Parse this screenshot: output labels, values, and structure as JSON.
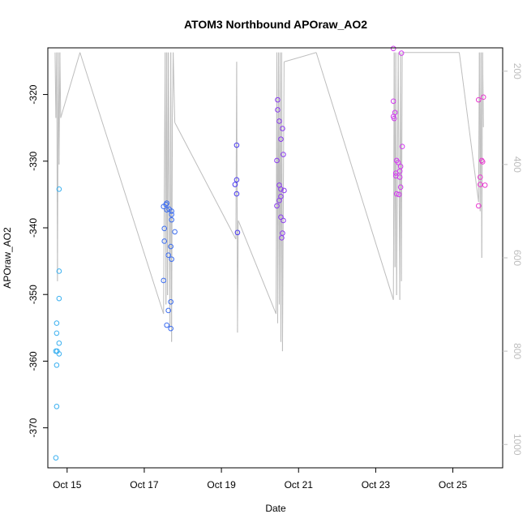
{
  "chart_data": {
    "type": "scatter",
    "title": "ATOM3 Northbound APOraw_AO2",
    "xlabel": "Date",
    "ylabel": "APOraw_AO2",
    "xlim": [
      "2021-10-14T12:00",
      "2021-10-26T07:00"
    ],
    "ylim": [
      -376,
      -313
    ],
    "x_ticks": [
      {
        "x": "2021-10-15T00:00",
        "label": "Oct 15"
      },
      {
        "x": "2021-10-17T00:00",
        "label": "Oct 17"
      },
      {
        "x": "2021-10-19T00:00",
        "label": "Oct 19"
      },
      {
        "x": "2021-10-21T00:00",
        "label": "Oct 21"
      },
      {
        "x": "2021-10-23T00:00",
        "label": "Oct 23"
      },
      {
        "x": "2021-10-25T00:00",
        "label": "Oct 25"
      }
    ],
    "y_ticks": [
      -370,
      -360,
      -350,
      -340,
      -330,
      -320
    ],
    "y2_lim": [
      1050,
      150
    ],
    "y2_ticks": [
      200,
      400,
      600,
      800,
      1000
    ],
    "axis_color": "#bdbdbd",
    "points": [
      {
        "x": "2021-10-14T17:00",
        "y": -374.5,
        "color": "#3ab0f0"
      },
      {
        "x": "2021-10-14T17:30",
        "y": -366.8,
        "color": "#3ab0f0"
      },
      {
        "x": "2021-10-14T17:30",
        "y": -360.6,
        "color": "#3ab0f0"
      },
      {
        "x": "2021-10-14T17:00",
        "y": -358.5,
        "color": "#3ab0f0"
      },
      {
        "x": "2021-10-14T17:45",
        "y": -358.5,
        "color": "#3ab0f0"
      },
      {
        "x": "2021-10-14T19:00",
        "y": -358.9,
        "color": "#3ab0f0"
      },
      {
        "x": "2021-10-14T19:00",
        "y": -357.3,
        "color": "#3ab0f0"
      },
      {
        "x": "2021-10-14T17:30",
        "y": -355.8,
        "color": "#3ab0f0"
      },
      {
        "x": "2021-10-14T17:30",
        "y": -354.3,
        "color": "#3ab0f0"
      },
      {
        "x": "2021-10-14T19:00",
        "y": -350.6,
        "color": "#3ab0f0"
      },
      {
        "x": "2021-10-14T19:00",
        "y": -346.5,
        "color": "#3ab0f0"
      },
      {
        "x": "2021-10-14T19:00",
        "y": -334.2,
        "color": "#3ab0f0"
      },
      {
        "x": "2021-10-17T12:00",
        "y": -336.8,
        "color": "#3a6cf0"
      },
      {
        "x": "2021-10-17T13:30",
        "y": -336.5,
        "color": "#3a6cf0"
      },
      {
        "x": "2021-10-17T14:00",
        "y": -336.3,
        "color": "#3a6cf0"
      },
      {
        "x": "2021-10-17T15:30",
        "y": -337.2,
        "color": "#3a6cf0"
      },
      {
        "x": "2021-10-17T17:00",
        "y": -337.5,
        "color": "#3a6cf0"
      },
      {
        "x": "2021-10-17T14:00",
        "y": -337.3,
        "color": "#3a6cf0"
      },
      {
        "x": "2021-10-17T17:00",
        "y": -338.0,
        "color": "#3a6cf0"
      },
      {
        "x": "2021-10-17T17:00",
        "y": -338.8,
        "color": "#3a6cf0"
      },
      {
        "x": "2021-10-17T12:30",
        "y": -340.1,
        "color": "#3a6cf0"
      },
      {
        "x": "2021-10-17T19:00",
        "y": -340.6,
        "color": "#3a6cf0"
      },
      {
        "x": "2021-10-17T12:30",
        "y": -342.0,
        "color": "#3a6cf0"
      },
      {
        "x": "2021-10-17T16:30",
        "y": -342.8,
        "color": "#3a6cf0"
      },
      {
        "x": "2021-10-17T15:00",
        "y": -344.1,
        "color": "#3a6cf0"
      },
      {
        "x": "2021-10-17T17:00",
        "y": -344.7,
        "color": "#3a6cf0"
      },
      {
        "x": "2021-10-17T12:00",
        "y": -347.9,
        "color": "#3a6cf0"
      },
      {
        "x": "2021-10-17T16:30",
        "y": -351.1,
        "color": "#3a6cf0"
      },
      {
        "x": "2021-10-17T15:00",
        "y": -352.4,
        "color": "#3a6cf0"
      },
      {
        "x": "2021-10-17T14:00",
        "y": -354.6,
        "color": "#3a6cf0"
      },
      {
        "x": "2021-10-17T16:30",
        "y": -355.1,
        "color": "#3a6cf0"
      },
      {
        "x": "2021-10-19T09:30",
        "y": -327.6,
        "color": "#4a3af0"
      },
      {
        "x": "2021-10-19T09:30",
        "y": -332.8,
        "color": "#4a3af0"
      },
      {
        "x": "2021-10-19T08:30",
        "y": -333.5,
        "color": "#4a3af0"
      },
      {
        "x": "2021-10-19T09:30",
        "y": -334.9,
        "color": "#4a3af0"
      },
      {
        "x": "2021-10-19T10:00",
        "y": -340.7,
        "color": "#4a3af0"
      },
      {
        "x": "2021-10-20T11:00",
        "y": -320.8,
        "color": "#8a3af0"
      },
      {
        "x": "2021-10-20T11:00",
        "y": -322.3,
        "color": "#8a3af0"
      },
      {
        "x": "2021-10-20T12:00",
        "y": -324.0,
        "color": "#8a3af0"
      },
      {
        "x": "2021-10-20T14:00",
        "y": -325.1,
        "color": "#8a3af0"
      },
      {
        "x": "2021-10-20T13:00",
        "y": -326.7,
        "color": "#8a3af0"
      },
      {
        "x": "2021-10-20T14:30",
        "y": -329.0,
        "color": "#8a3af0"
      },
      {
        "x": "2021-10-20T10:30",
        "y": -329.9,
        "color": "#8a3af0"
      },
      {
        "x": "2021-10-20T12:00",
        "y": -333.6,
        "color": "#8a3af0"
      },
      {
        "x": "2021-10-20T13:00",
        "y": -334.2,
        "color": "#8a3af0"
      },
      {
        "x": "2021-10-20T15:00",
        "y": -334.4,
        "color": "#8a3af0"
      },
      {
        "x": "2021-10-20T13:00",
        "y": -335.3,
        "color": "#8a3af0"
      },
      {
        "x": "2021-10-20T12:00",
        "y": -335.9,
        "color": "#8a3af0"
      },
      {
        "x": "2021-10-20T10:30",
        "y": -336.7,
        "color": "#8a3af0"
      },
      {
        "x": "2021-10-20T13:00",
        "y": -338.4,
        "color": "#8a3af0"
      },
      {
        "x": "2021-10-20T14:30",
        "y": -338.9,
        "color": "#8a3af0"
      },
      {
        "x": "2021-10-20T14:00",
        "y": -340.8,
        "color": "#8a3af0"
      },
      {
        "x": "2021-10-20T13:30",
        "y": -341.5,
        "color": "#8a3af0"
      },
      {
        "x": "2021-10-23T11:00",
        "y": -313.1,
        "color": "#d23af0"
      },
      {
        "x": "2021-10-23T16:00",
        "y": -313.8,
        "color": "#d23af0"
      },
      {
        "x": "2021-10-23T11:00",
        "y": -321.0,
        "color": "#d23af0"
      },
      {
        "x": "2021-10-23T12:00",
        "y": -322.7,
        "color": "#d23af0"
      },
      {
        "x": "2021-10-23T11:00",
        "y": -323.3,
        "color": "#d23af0"
      },
      {
        "x": "2021-10-23T11:30",
        "y": -323.6,
        "color": "#d23af0"
      },
      {
        "x": "2021-10-23T16:30",
        "y": -327.8,
        "color": "#d23af0"
      },
      {
        "x": "2021-10-23T13:00",
        "y": -329.9,
        "color": "#d23af0"
      },
      {
        "x": "2021-10-23T14:00",
        "y": -330.2,
        "color": "#d23af0"
      },
      {
        "x": "2021-10-23T15:30",
        "y": -330.8,
        "color": "#d23af0"
      },
      {
        "x": "2021-10-23T15:00",
        "y": -331.5,
        "color": "#d23af0"
      },
      {
        "x": "2021-10-23T12:30",
        "y": -331.8,
        "color": "#d23af0"
      },
      {
        "x": "2021-10-23T12:30",
        "y": -332.2,
        "color": "#d23af0"
      },
      {
        "x": "2021-10-23T15:00",
        "y": -332.4,
        "color": "#d23af0"
      },
      {
        "x": "2021-10-23T15:30",
        "y": -333.9,
        "color": "#d23af0"
      },
      {
        "x": "2021-10-23T13:00",
        "y": -334.9,
        "color": "#d23af0"
      },
      {
        "x": "2021-10-23T14:30",
        "y": -335.0,
        "color": "#d23af0"
      },
      {
        "x": "2021-10-25T16:00",
        "y": -320.8,
        "color": "#e83ad0"
      },
      {
        "x": "2021-10-25T19:00",
        "y": -320.4,
        "color": "#e83ad0"
      },
      {
        "x": "2021-10-25T18:00",
        "y": -329.9,
        "color": "#e83ad0"
      },
      {
        "x": "2021-10-25T18:30",
        "y": -330.1,
        "color": "#e83ad0"
      },
      {
        "x": "2021-10-25T17:00",
        "y": -332.4,
        "color": "#e83ad0"
      },
      {
        "x": "2021-10-25T17:00",
        "y": -333.5,
        "color": "#e83ad0"
      },
      {
        "x": "2021-10-25T20:00",
        "y": -333.6,
        "color": "#e83ad0"
      },
      {
        "x": "2021-10-25T16:00",
        "y": -336.7,
        "color": "#e83ad0"
      }
    ],
    "altitude_trace": [
      {
        "x": "2021-10-14T16:30",
        "y2": 160
      },
      {
        "x": "2021-10-14T17:00",
        "y2": 300
      },
      {
        "x": "2021-10-14T17:30",
        "y2": 160
      },
      {
        "x": "2021-10-14T18:00",
        "y2": 650
      },
      {
        "x": "2021-10-14T18:30",
        "y2": 160
      },
      {
        "x": "2021-10-14T19:00",
        "y2": 400
      },
      {
        "x": "2021-10-14T19:30",
        "y2": 160
      },
      {
        "x": "2021-10-14T20:00",
        "y2": 300
      },
      {
        "x": "2021-10-15T08:00",
        "y2": 160
      },
      {
        "x": "2021-10-17T12:00",
        "y2": 720
      },
      {
        "x": "2021-10-17T13:00",
        "y2": 160
      },
      {
        "x": "2021-10-17T13:30",
        "y2": 700
      },
      {
        "x": "2021-10-17T14:00",
        "y2": 160
      },
      {
        "x": "2021-10-17T14:30",
        "y2": 680
      },
      {
        "x": "2021-10-17T15:00",
        "y2": 160
      },
      {
        "x": "2021-10-17T16:00",
        "y2": 750
      },
      {
        "x": "2021-10-17T16:30",
        "y2": 160
      },
      {
        "x": "2021-10-17T17:00",
        "y2": 780
      },
      {
        "x": "2021-10-17T17:30",
        "y2": 300
      },
      {
        "x": "2021-10-17T18:00",
        "y2": 160
      },
      {
        "x": "2021-10-17T19:00",
        "y2": 310
      },
      {
        "x": "2021-10-19T09:00",
        "y2": 560
      },
      {
        "x": "2021-10-19T09:30",
        "y2": 180
      },
      {
        "x": "2021-10-19T10:00",
        "y2": 760
      },
      {
        "x": "2021-10-19T10:30",
        "y2": 520
      },
      {
        "x": "2021-10-20T10:00",
        "y2": 720
      },
      {
        "x": "2021-10-20T10:30",
        "y2": 160
      },
      {
        "x": "2021-10-20T11:00",
        "y2": 740
      },
      {
        "x": "2021-10-20T11:30",
        "y2": 160
      },
      {
        "x": "2021-10-20T12:00",
        "y2": 700
      },
      {
        "x": "2021-10-20T12:30",
        "y2": 160
      },
      {
        "x": "2021-10-20T13:00",
        "y2": 780
      },
      {
        "x": "2021-10-20T13:30",
        "y2": 160
      },
      {
        "x": "2021-10-20T14:00",
        "y2": 800
      },
      {
        "x": "2021-10-20T15:00",
        "y2": 180
      },
      {
        "x": "2021-10-21T11:00",
        "y2": 160
      },
      {
        "x": "2021-10-23T11:00",
        "y2": 690
      },
      {
        "x": "2021-10-23T11:30",
        "y2": 160
      },
      {
        "x": "2021-10-23T12:00",
        "y2": 620
      },
      {
        "x": "2021-10-23T12:30",
        "y2": 160
      },
      {
        "x": "2021-10-23T13:00",
        "y2": 680
      },
      {
        "x": "2021-10-23T14:00",
        "y2": 160
      },
      {
        "x": "2021-10-23T15:00",
        "y2": 690
      },
      {
        "x": "2021-10-23T15:30",
        "y2": 160
      },
      {
        "x": "2021-10-23T16:00",
        "y2": 650
      },
      {
        "x": "2021-10-23T16:30",
        "y2": 160
      },
      {
        "x": "2021-10-25T04:00",
        "y2": 160
      },
      {
        "x": "2021-10-25T16:00",
        "y2": 480
      },
      {
        "x": "2021-10-25T16:30",
        "y2": 160
      },
      {
        "x": "2021-10-25T17:00",
        "y2": 500
      },
      {
        "x": "2021-10-25T17:30",
        "y2": 160
      },
      {
        "x": "2021-10-25T18:00",
        "y2": 600
      },
      {
        "x": "2021-10-25T18:30",
        "y2": 160
      },
      {
        "x": "2021-10-25T19:00",
        "y2": 320
      }
    ]
  }
}
